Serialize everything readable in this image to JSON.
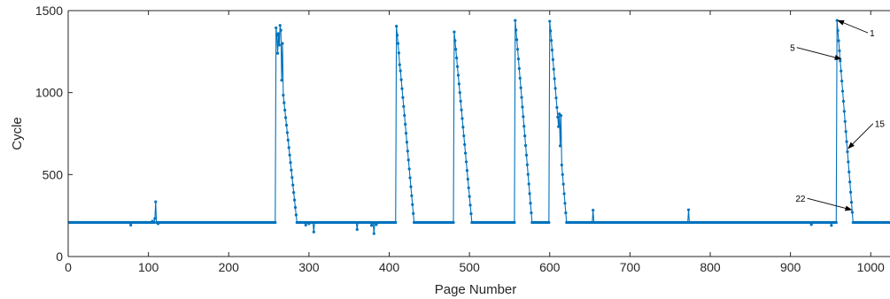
{
  "chart_data": {
    "type": "line",
    "title": "",
    "xlabel": "Page Number",
    "ylabel": "Cycle",
    "xlim": [
      0,
      1024
    ],
    "ylim": [
      0,
      1500
    ],
    "xticks": [
      0,
      100,
      200,
      300,
      400,
      500,
      600,
      700,
      800,
      900,
      1000
    ],
    "xtick_labels": [
      "0",
      "100",
      "200",
      "300",
      "400",
      "500",
      "600",
      "700",
      "800",
      "900",
      "1000"
    ],
    "yticks": [
      0,
      500,
      1000,
      1500
    ],
    "ytick_labels": [
      "0",
      "500",
      "1000",
      "1500"
    ],
    "grid": false,
    "series_color": "#0072BD",
    "baseline": 208,
    "outliers": [
      {
        "x": 78,
        "y": 192
      },
      {
        "x": 105,
        "y": 215
      },
      {
        "x": 108,
        "y": 232
      },
      {
        "x": 109,
        "y": 334
      },
      {
        "x": 112,
        "y": 200
      },
      {
        "x": 296,
        "y": 192
      },
      {
        "x": 300,
        "y": 200
      },
      {
        "x": 306,
        "y": 150
      },
      {
        "x": 360,
        "y": 165
      },
      {
        "x": 378,
        "y": 190
      },
      {
        "x": 381,
        "y": 140
      },
      {
        "x": 384,
        "y": 195
      },
      {
        "x": 654,
        "y": 283
      },
      {
        "x": 773,
        "y": 285
      },
      {
        "x": 926,
        "y": 195
      },
      {
        "x": 951,
        "y": 190
      }
    ],
    "bursts": [
      {
        "start": 259,
        "peak": 1395,
        "end": 285,
        "early": [
          {
            "x": 261,
            "y": 1240
          },
          {
            "x": 262,
            "y": 1360
          },
          {
            "x": 263,
            "y": 1290
          },
          {
            "x": 264,
            "y": 1410
          },
          {
            "x": 265,
            "y": 1380
          },
          {
            "x": 267,
            "y": 1300
          }
        ]
      },
      {
        "start": 409,
        "peak": 1405,
        "end": 431,
        "early": [
          {
            "x": 411,
            "y": 1300
          },
          {
            "x": 413,
            "y": 1170
          }
        ]
      },
      {
        "start": 481,
        "peak": 1370,
        "end": 503,
        "early": []
      },
      {
        "start": 557,
        "peak": 1440,
        "end": 578,
        "early": []
      },
      {
        "start": 600,
        "peak": 1435,
        "end": 621,
        "early": [
          {
            "x": 612,
            "y": 870
          },
          {
            "x": 614,
            "y": 860
          }
        ]
      },
      {
        "start": 958,
        "peak": 1440,
        "end": 978,
        "early": []
      }
    ],
    "annotations": [
      {
        "label": "1",
        "x": 959,
        "y": 1440
      },
      {
        "label": "5",
        "x": 963,
        "y": 1205
      },
      {
        "label": "15",
        "x": 972,
        "y": 660
      },
      {
        "label": "22",
        "x": 976,
        "y": 285
      }
    ]
  }
}
